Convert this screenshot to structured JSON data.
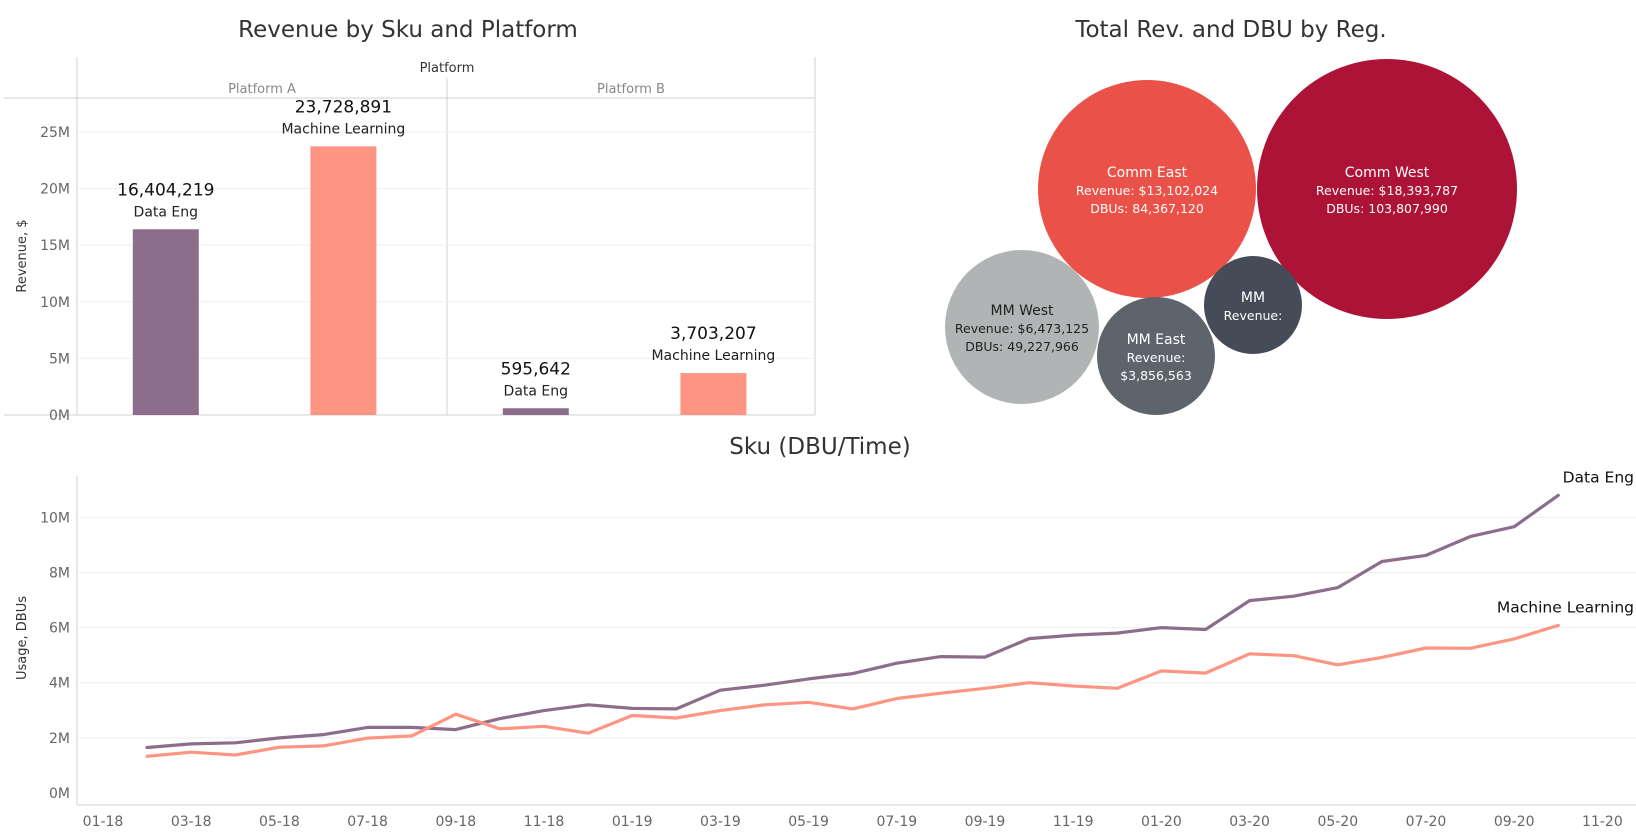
{
  "chart_data": [
    {
      "type": "bar",
      "title": "Revenue by Sku and Platform",
      "column_header": "Platform",
      "ylabel": "Revenue, $",
      "ylim": [
        0,
        28000000
      ],
      "yticks": [
        {
          "value": 0,
          "label": "0M"
        },
        {
          "value": 5000000,
          "label": "5M"
        },
        {
          "value": 10000000,
          "label": "10M"
        },
        {
          "value": 15000000,
          "label": "15M"
        },
        {
          "value": 20000000,
          "label": "20M"
        },
        {
          "value": 25000000,
          "label": "25M"
        }
      ],
      "panels": [
        {
          "platform": "Platform A",
          "bars": [
            {
              "sku": "Data Eng",
              "value": 16404219,
              "label": "16,404,219",
              "color": "#8c6e8c"
            },
            {
              "sku": "Machine Learning",
              "value": 23728891,
              "label": "23,728,891",
              "color": "#fe9582"
            }
          ]
        },
        {
          "platform": "Platform B",
          "bars": [
            {
              "sku": "Data Eng",
              "value": 595642,
              "label": "595,642",
              "color": "#8c6e8c"
            },
            {
              "sku": "Machine Learning",
              "value": 3703207,
              "label": "3,703,207",
              "color": "#fe9582"
            }
          ]
        }
      ]
    },
    {
      "type": "bubble",
      "title": "Total Rev. and DBU by Reg.",
      "bubbles": [
        {
          "region": "Comm West",
          "revenue": 18393787,
          "dbus": 103807990,
          "lines": [
            "Revenue: $18,393,787",
            "DBUs: 103,807,990"
          ],
          "color": "#ad1237",
          "text_color": "#ffffff"
        },
        {
          "region": "Comm East",
          "revenue": 13102024,
          "dbus": 84367120,
          "lines": [
            "Revenue: $13,102,024",
            "DBUs: 84,367,120"
          ],
          "color": "#ea5249",
          "text_color": "#ffffff"
        },
        {
          "region": "MM West",
          "revenue": 6473125,
          "dbus": 49227966,
          "lines": [
            "Revenue: $6,473,125",
            "DBUs: 49,227,966"
          ],
          "color": "#b1b4b5",
          "text_color": "#222222"
        },
        {
          "region": "MM East",
          "revenue": 3856563,
          "lines": [
            "Revenue:",
            "$3,856,563"
          ],
          "color": "#5d646c",
          "text_color": "#ffffff"
        },
        {
          "region": "MM",
          "lines": [
            "Revenue:"
          ],
          "color": "#464c57",
          "text_color": "#ffffff"
        }
      ]
    },
    {
      "type": "line",
      "title": "Sku (DBU/Time)",
      "ylabel": "Usage, DBUs",
      "ylim": [
        0,
        11500000
      ],
      "yticks": [
        {
          "value": 0,
          "label": "0M"
        },
        {
          "value": 2000000,
          "label": "2M"
        },
        {
          "value": 4000000,
          "label": "4M"
        },
        {
          "value": 6000000,
          "label": "6M"
        },
        {
          "value": 8000000,
          "label": "8M"
        },
        {
          "value": 10000000,
          "label": "10M"
        }
      ],
      "x_ticks": [
        "01-18",
        "03-18",
        "05-18",
        "07-18",
        "09-18",
        "11-18",
        "01-19",
        "03-19",
        "05-19",
        "07-19",
        "09-19",
        "11-19",
        "01-20",
        "03-20",
        "05-20",
        "07-20",
        "09-20",
        "11-20"
      ],
      "x": [
        "02-18",
        "03-18",
        "04-18",
        "05-18",
        "06-18",
        "07-18",
        "08-18",
        "09-18",
        "10-18",
        "11-18",
        "12-18",
        "01-19",
        "02-19",
        "03-19",
        "04-19",
        "05-19",
        "06-19",
        "07-19",
        "08-19",
        "09-19",
        "10-19",
        "11-19",
        "12-19",
        "01-20",
        "02-20",
        "03-20",
        "04-20",
        "05-20",
        "06-20",
        "07-20",
        "08-20",
        "09-20",
        "10-20"
      ],
      "series": [
        {
          "name": "Data Eng",
          "color": "#8c6e8c",
          "values": [
            1650000,
            1780000,
            1820000,
            2000000,
            2120000,
            2380000,
            2380000,
            2300000,
            2700000,
            2990000,
            3200000,
            3070000,
            3050000,
            3730000,
            3910000,
            4140000,
            4330000,
            4710000,
            4950000,
            4930000,
            5600000,
            5730000,
            5800000,
            6000000,
            5930000,
            6980000,
            7140000,
            7450000,
            8400000,
            8620000,
            9300000,
            9660000,
            10800000
          ]
        },
        {
          "name": "Machine Learning",
          "color": "#fe9582",
          "values": [
            1330000,
            1480000,
            1380000,
            1660000,
            1710000,
            1990000,
            2070000,
            2860000,
            2330000,
            2420000,
            2170000,
            2810000,
            2720000,
            2990000,
            3200000,
            3290000,
            3050000,
            3430000,
            3620000,
            3800000,
            4000000,
            3880000,
            3800000,
            4430000,
            4350000,
            5050000,
            4980000,
            4650000,
            4920000,
            5260000,
            5250000,
            5590000,
            6080000
          ]
        }
      ]
    }
  ]
}
